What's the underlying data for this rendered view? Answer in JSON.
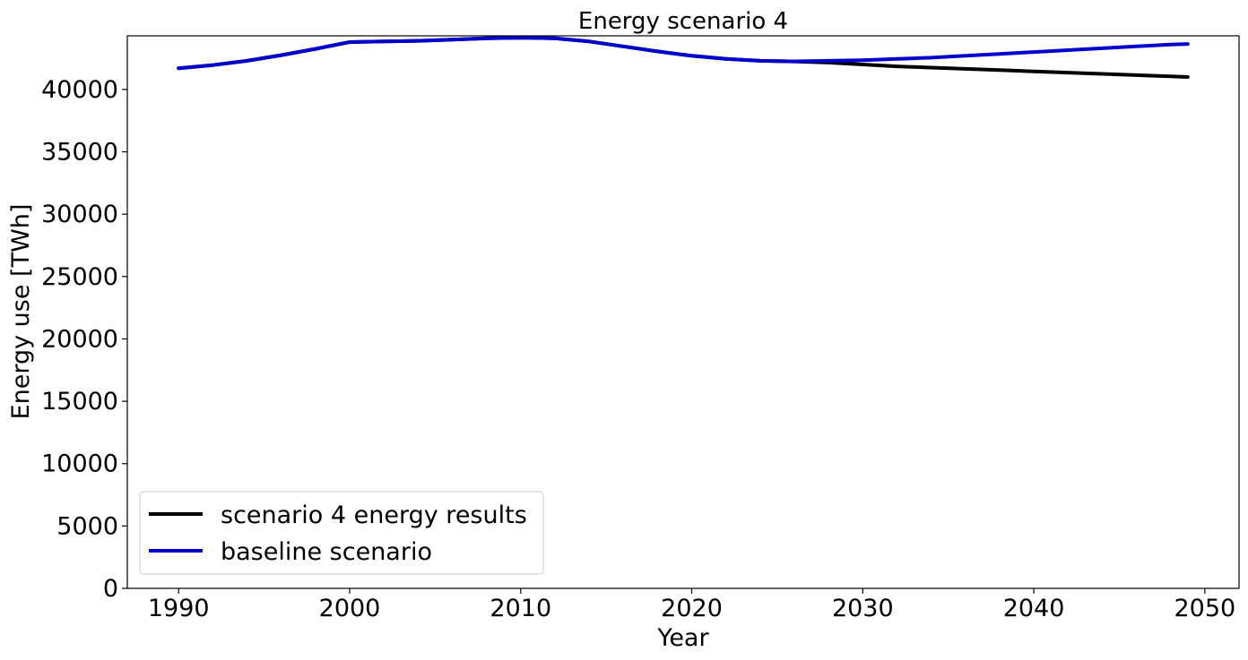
{
  "chart_data": {
    "type": "line",
    "title": "Energy scenario 4",
    "xlabel": "Year",
    "ylabel": "Energy use [TWh]",
    "xlim": [
      1987,
      2052
    ],
    "ylim": [
      0,
      44300
    ],
    "xticks": [
      1990,
      2000,
      2010,
      2020,
      2030,
      2040,
      2050
    ],
    "yticks": [
      0,
      5000,
      10000,
      15000,
      20000,
      25000,
      30000,
      35000,
      40000
    ],
    "legend_position": "lower-left",
    "grid": false,
    "series": [
      {
        "name": "scenario 4 energy results",
        "color": "#000000",
        "x": [
          1990,
          1992,
          1994,
          1996,
          1998,
          2000,
          2002,
          2004,
          2006,
          2008,
          2010,
          2012,
          2014,
          2016,
          2018,
          2020,
          2022,
          2024,
          2026,
          2028,
          2030,
          2032,
          2034,
          2036,
          2038,
          2040,
          2042,
          2044,
          2046,
          2048,
          2049
        ],
        "y": [
          41700,
          41950,
          42300,
          42750,
          43250,
          43800,
          43850,
          43900,
          44000,
          44100,
          44150,
          44100,
          43850,
          43450,
          43050,
          42700,
          42450,
          42300,
          42250,
          42150,
          42000,
          41850,
          41750,
          41650,
          41550,
          41450,
          41350,
          41250,
          41150,
          41050,
          41000
        ]
      },
      {
        "name": "baseline scenario",
        "color": "#0000cc",
        "x": [
          1990,
          1992,
          1994,
          1996,
          1998,
          2000,
          2002,
          2004,
          2006,
          2008,
          2010,
          2012,
          2014,
          2016,
          2018,
          2020,
          2022,
          2024,
          2026,
          2028,
          2030,
          2032,
          2034,
          2036,
          2038,
          2040,
          2042,
          2044,
          2046,
          2048,
          2049
        ],
        "y": [
          41700,
          41950,
          42300,
          42750,
          43250,
          43800,
          43850,
          43900,
          44000,
          44100,
          44150,
          44100,
          43850,
          43450,
          43050,
          42700,
          42450,
          42300,
          42250,
          42300,
          42350,
          42450,
          42550,
          42700,
          42850,
          43000,
          43150,
          43300,
          43450,
          43600,
          43650
        ]
      }
    ]
  }
}
